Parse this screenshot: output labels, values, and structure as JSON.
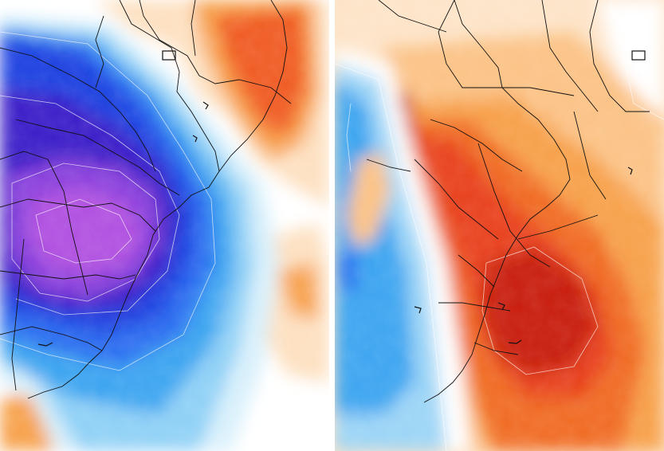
{
  "panels": [
    {
      "id": "left",
      "theme": "cold-anomaly",
      "palette": {
        "deep_violet": "#b04fe0",
        "violet": "#8a3fdc",
        "indigo": "#3b1ec8",
        "blue": "#1f3fe0",
        "royal": "#2a6cf0",
        "sky": "#3aa4f0",
        "light_sky": "#8fd0f6",
        "pale": "#d8f0fb",
        "white": "#ffffff",
        "peach": "#fde0c0",
        "orange": "#f7a04a",
        "red_orange": "#f05a20",
        "red": "#e03010"
      }
    },
    {
      "id": "right",
      "theme": "warm-anomaly",
      "palette": {
        "white": "#ffffff",
        "peach": "#fde4c8",
        "light_orange": "#fbc285",
        "orange": "#f7a04a",
        "red_orange": "#f06a24",
        "red": "#e8401a",
        "dark_red": "#c81a10",
        "light_sky": "#9ad4f6",
        "sky": "#3aa4f0",
        "royal": "#2a6cf0"
      }
    }
  ],
  "borders_color": "#111111",
  "contour_color": "#ffffff"
}
